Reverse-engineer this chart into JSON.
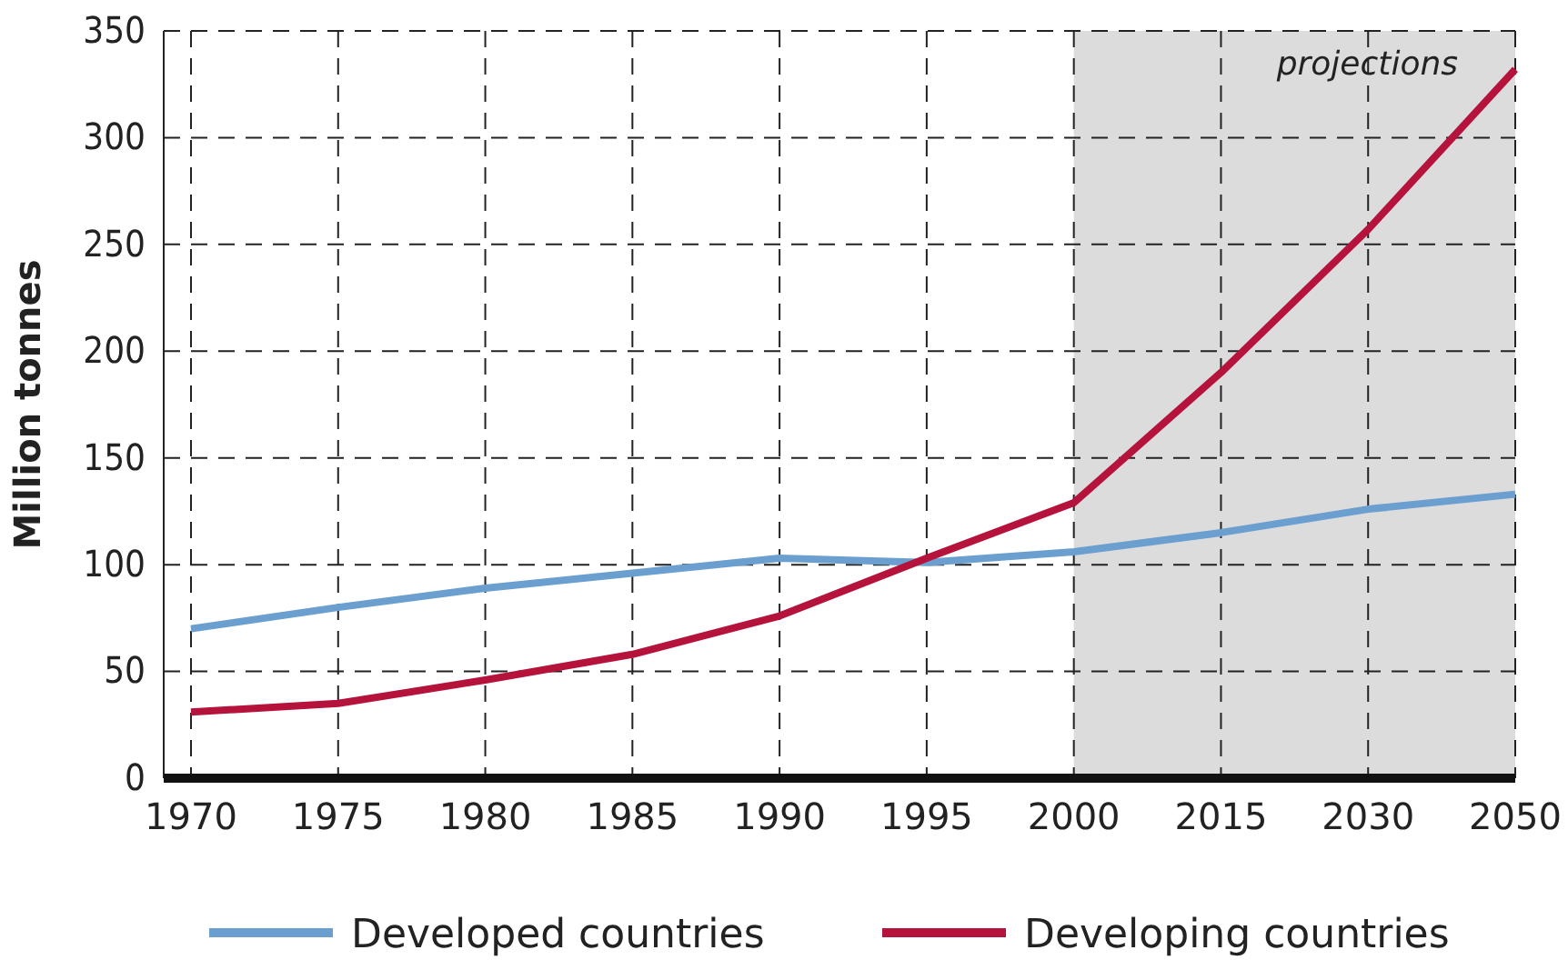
{
  "chart_data": {
    "type": "line",
    "ylabel": "Million tonnes",
    "categories": [
      "1970",
      "1975",
      "1980",
      "1985",
      "1990",
      "1995",
      "2000",
      "2015",
      "2030",
      "2050"
    ],
    "series": [
      {
        "name": "Developed countries",
        "color": "#6a9fcf",
        "values": [
          70,
          80,
          89,
          96,
          103,
          101,
          106,
          115,
          126,
          133
        ]
      },
      {
        "name": "Developing countries",
        "color": "#b5123c",
        "values": [
          31,
          35,
          46,
          58,
          76,
          103,
          129,
          190,
          257,
          332
        ]
      }
    ],
    "ylim": [
      0,
      350
    ],
    "yticks": [
      0,
      50,
      100,
      150,
      200,
      250,
      300,
      350
    ],
    "grid": true,
    "line_style": "solid",
    "legend": "bottom",
    "bands": [
      {
        "axis": "x",
        "from": "2000",
        "to": "2050",
        "label": "projections",
        "color": "#dcdcdd"
      }
    ]
  }
}
